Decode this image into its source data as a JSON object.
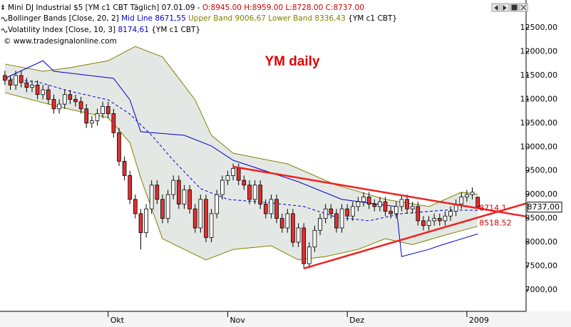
{
  "chart_data": {
    "type": "candlestick",
    "title": "YM daily",
    "header": {
      "line1": "Mini DJ Industrial $5 [YM c1 CBT  Täglich] 07.01.09 -",
      "ohlc": "O:8945.00 H:8959.00 L:8728.00 C:8737.00",
      "bollinger": "Bollinger Bands [Close, 20, 2]",
      "mid": "Mid Line 8671,55",
      "upper": "Upper Band 9006,67",
      "lower": "Lower Band 8336,43",
      "bb_symbol": "{YM c1 CBT}",
      "vol": "Volatility Index [Close, 10, 3]",
      "vol_value": "8174,61",
      "vol_symbol": "{YM c1 CBT}",
      "source": "© www.tradesignalonline.com"
    },
    "categories": [
      null,
      null,
      null,
      null,
      null,
      null,
      null,
      null,
      null,
      null,
      null,
      null,
      null,
      null,
      null,
      null,
      null,
      null,
      null,
      "Okt",
      null,
      null,
      null,
      null,
      null,
      null,
      null,
      null,
      null,
      null,
      null,
      null,
      null,
      null,
      null,
      null,
      null,
      null,
      null,
      null,
      null,
      "Nov",
      null,
      null,
      null,
      null,
      null,
      null,
      null,
      null,
      null,
      null,
      null,
      null,
      null,
      null,
      null,
      null,
      null,
      null,
      null,
      null,
      null,
      "Dez",
      null,
      null,
      null,
      null,
      null,
      null,
      null,
      null,
      null,
      null,
      null,
      null,
      null,
      null,
      null,
      null,
      null,
      null,
      null,
      null,
      null,
      "2009",
      null,
      null
    ],
    "open": [
      11500,
      11400,
      11300,
      11500,
      11350,
      11250,
      11300,
      11100,
      11200,
      11000,
      10800,
      10900,
      11100,
      11000,
      10950,
      10800,
      10500,
      10550,
      10700,
      10850,
      10700,
      10300,
      9700,
      9400,
      8900,
      8600,
      8200,
      8700,
      9200,
      8900,
      8500,
      9000,
      9300,
      8800,
      9100,
      8700,
      8300,
      8900,
      8100,
      8600,
      9000,
      9300,
      9400,
      9550,
      9300,
      9200,
      8900,
      9200,
      8800,
      8600,
      8900,
      8500,
      8300,
      8600,
      8000,
      8300,
      7550,
      7900,
      8250,
      8500,
      8700,
      8600,
      8300,
      8700,
      8550,
      8750,
      8850,
      8950,
      8800,
      8750,
      8850,
      8650,
      8600,
      8750,
      8900,
      8700,
      8750,
      8450,
      8350,
      8450,
      8500,
      8450,
      8550,
      8650,
      8800,
      8950,
      9000,
      8945
    ],
    "high": [
      11600,
      11500,
      11600,
      11600,
      11450,
      11400,
      11400,
      11300,
      11300,
      11100,
      11000,
      11200,
      11200,
      11100,
      11050,
      10900,
      10650,
      10800,
      10950,
      10950,
      10800,
      10400,
      9800,
      9500,
      9000,
      8700,
      8800,
      9300,
      9300,
      9000,
      9100,
      9400,
      9400,
      9200,
      9200,
      8800,
      9000,
      9000,
      8700,
      9100,
      9400,
      9500,
      9650,
      9650,
      9400,
      9300,
      9300,
      9300,
      8900,
      9000,
      9000,
      8600,
      8700,
      8700,
      8400,
      8400,
      8000,
      8350,
      8600,
      8800,
      8800,
      8700,
      8800,
      8800,
      8850,
      8950,
      9050,
      9050,
      8900,
      8950,
      8950,
      8750,
      8850,
      9000,
      9000,
      8850,
      8850,
      8550,
      8550,
      8600,
      8600,
      8650,
      8750,
      8900,
      9050,
      9100,
      9150,
      8959
    ],
    "low": [
      11300,
      11200,
      11200,
      11250,
      11150,
      11150,
      11000,
      11000,
      10900,
      10700,
      10700,
      10800,
      10900,
      10850,
      10700,
      10400,
      10400,
      10450,
      10600,
      10600,
      10200,
      9600,
      9300,
      8800,
      8500,
      7850,
      8100,
      8600,
      8800,
      8400,
      8400,
      8900,
      8700,
      8700,
      8600,
      8200,
      8200,
      8000,
      8000,
      8500,
      8900,
      9200,
      9300,
      9200,
      9100,
      8800,
      8800,
      8700,
      8500,
      8500,
      8400,
      8200,
      8200,
      7900,
      7900,
      7450,
      7450,
      7800,
      8150,
      8400,
      8500,
      8200,
      8200,
      8450,
      8450,
      8650,
      8750,
      8700,
      8650,
      8650,
      8550,
      8500,
      8500,
      8650,
      8600,
      8600,
      8350,
      8250,
      8250,
      8350,
      8350,
      8350,
      8450,
      8550,
      8700,
      8850,
      8900,
      8728
    ],
    "close": [
      11400,
      11300,
      11500,
      11350,
      11250,
      11300,
      11100,
      11200,
      11000,
      10800,
      10900,
      11100,
      11000,
      10950,
      10800,
      10500,
      10550,
      10700,
      10850,
      10700,
      10300,
      9700,
      9400,
      8900,
      8600,
      8200,
      8700,
      9200,
      8900,
      8500,
      9000,
      9300,
      8800,
      9100,
      8700,
      8300,
      8900,
      8100,
      8600,
      9000,
      9300,
      9400,
      9550,
      9300,
      9200,
      8900,
      9200,
      8800,
      8600,
      8900,
      8500,
      8300,
      8600,
      8000,
      8300,
      7550,
      7900,
      8250,
      8500,
      8700,
      8600,
      8300,
      8700,
      8550,
      8750,
      8850,
      8950,
      8800,
      8750,
      8850,
      8650,
      8600,
      8750,
      8900,
      8700,
      8750,
      8450,
      8350,
      8450,
      8500,
      8450,
      8550,
      8650,
      8800,
      8950,
      9000,
      9050,
      8737
    ],
    "up_color": "#ffffff",
    "down_color": "#e03030",
    "band_fill": "#e4e8e4",
    "lines": [
      {
        "name": "Upper Band",
        "color": "#808000",
        "dash": false,
        "x": [
          0,
          7,
          12,
          19,
          24,
          29,
          35,
          38,
          42,
          52,
          61,
          70,
          78,
          84,
          87
        ],
        "values": [
          11740,
          11590,
          11665,
          11810,
          12110,
          11890,
          10990,
          10245,
          9870,
          9645,
          9200,
          8900,
          8750,
          9050,
          9007
        ]
      },
      {
        "name": "Lower Band",
        "color": "#808000",
        "dash": false,
        "x": [
          0,
          10,
          19,
          23,
          25,
          29,
          33,
          37,
          42,
          49,
          54,
          59,
          65,
          70,
          75,
          81,
          87
        ],
        "values": [
          11140,
          10840,
          10615,
          10090,
          9345,
          8075,
          7850,
          7630,
          7850,
          7925,
          7630,
          7700,
          7850,
          8075,
          7950,
          8150,
          8336
        ]
      },
      {
        "name": "Mid Line",
        "color": "#0000cc",
        "dash": true,
        "x": [
          0,
          6,
          12,
          19,
          23,
          27,
          31,
          36,
          41,
          49,
          55,
          61,
          67,
          73,
          81,
          87
        ],
        "values": [
          11440,
          11365,
          11170,
          10990,
          10690,
          10245,
          9720,
          9125,
          8900,
          8825,
          8750,
          8525,
          8450,
          8600,
          8675,
          8672
        ]
      },
      {
        "name": "Volatility Index",
        "color": "#0000cc",
        "dash": false,
        "x": [
          0,
          7,
          9,
          20,
          23,
          25,
          33,
          38,
          42,
          54,
          62,
          72,
          73,
          78,
          80,
          87
        ],
        "values": [
          11440,
          11810,
          11590,
          11440,
          10990,
          10320,
          10245,
          10020,
          9720,
          9270,
          8900,
          8750,
          7700,
          7850,
          7930,
          8175
        ]
      }
    ],
    "trendlines": [
      {
        "label": "8714.1",
        "color": "#ee2222",
        "x": [
          42,
          87,
          96
        ],
        "values": [
          9586,
          8714.1,
          8540
        ]
      },
      {
        "label": "8518.52",
        "color": "#ee2222",
        "x": [
          55,
          87,
          96
        ],
        "values": [
          7450,
          8518.52,
          8819
        ]
      }
    ],
    "last_price": {
      "value": 8737,
      "label": "8737,00"
    },
    "xlim": [
      -0.9,
      95.9
    ],
    "ylim": [
      6550,
      13085
    ],
    "yticks": [
      {
        "value": 7000,
        "label": "7000,00"
      },
      {
        "value": 7500,
        "label": "7500,00"
      },
      {
        "value": 8000,
        "label": "8000,00"
      },
      {
        "value": 8500,
        "label": "8500,00"
      },
      {
        "value": 9000,
        "label": "9000,00"
      },
      {
        "value": 9500,
        "label": "9500,00"
      },
      {
        "value": 10000,
        "label": "10000,00"
      },
      {
        "value": 10500,
        "label": "10500,00"
      },
      {
        "value": 11000,
        "label": "11000,00"
      },
      {
        "value": 11500,
        "label": "11500,00"
      },
      {
        "value": 12000,
        "label": "12000,00"
      },
      {
        "value": 12500,
        "label": "12500,00"
      }
    ]
  }
}
